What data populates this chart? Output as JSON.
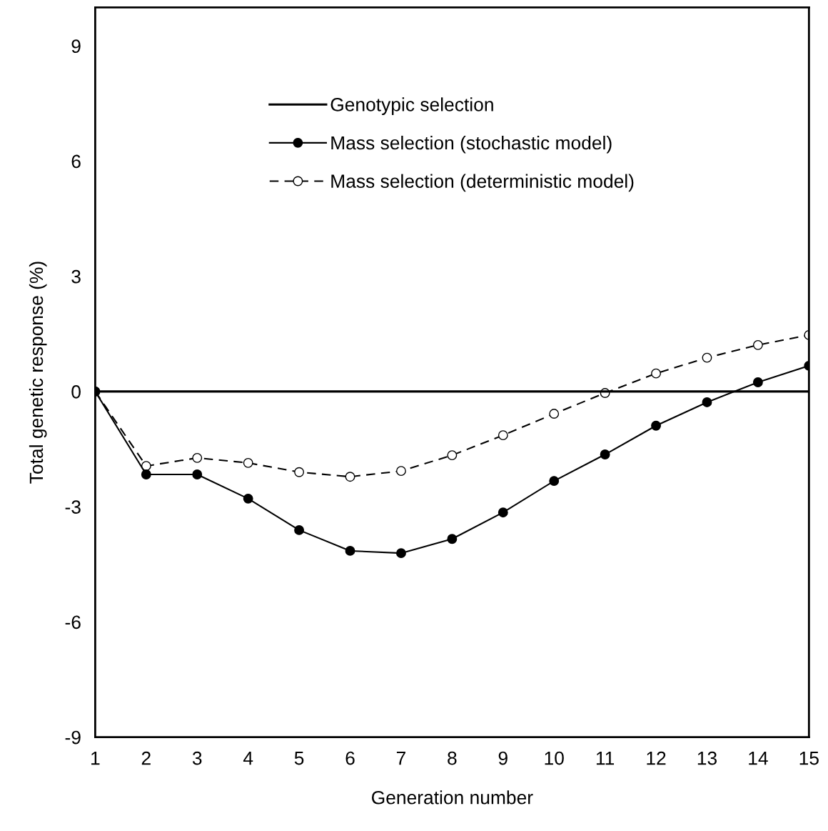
{
  "chart_data": {
    "type": "line",
    "xlabel": "Generation number",
    "ylabel": "Total genetic response (%)",
    "x": [
      1,
      2,
      3,
      4,
      5,
      6,
      7,
      8,
      9,
      10,
      11,
      12,
      13,
      14,
      15
    ],
    "xlim": [
      1,
      15
    ],
    "xticks": [
      1,
      2,
      3,
      4,
      5,
      6,
      7,
      8,
      9,
      10,
      11,
      12,
      13,
      14,
      15
    ],
    "ylim": [
      -9,
      10
    ],
    "yticks": [
      -9,
      -6,
      -3,
      0,
      3,
      6,
      9
    ],
    "grid": false,
    "legend": "top",
    "series": [
      {
        "name": "Genotypic selection",
        "color": "#000000",
        "marker": "none",
        "line_style": "solid",
        "values": [
          0,
          0,
          0,
          0,
          0,
          0,
          0,
          0,
          0,
          0,
          0,
          0,
          0,
          0,
          0
        ]
      },
      {
        "name": "Mass selection (stochastic model)",
        "color": "#000000",
        "marker": "circle",
        "line_style": "solid",
        "values": [
          0,
          -2.16,
          -2.16,
          -2.79,
          -3.61,
          -4.15,
          -4.21,
          -3.84,
          -3.15,
          -2.33,
          -1.64,
          -0.89,
          -0.28,
          0.24,
          0.67
        ]
      },
      {
        "name": "Mass selection (deterministic model)",
        "color": "#000000",
        "marker": "circle",
        "line_style": "dashed",
        "values": [
          0,
          -1.94,
          -1.73,
          -1.86,
          -2.1,
          -2.22,
          -2.07,
          -1.66,
          -1.14,
          -0.58,
          -0.04,
          0.47,
          0.88,
          1.21,
          1.47
        ]
      }
    ]
  }
}
